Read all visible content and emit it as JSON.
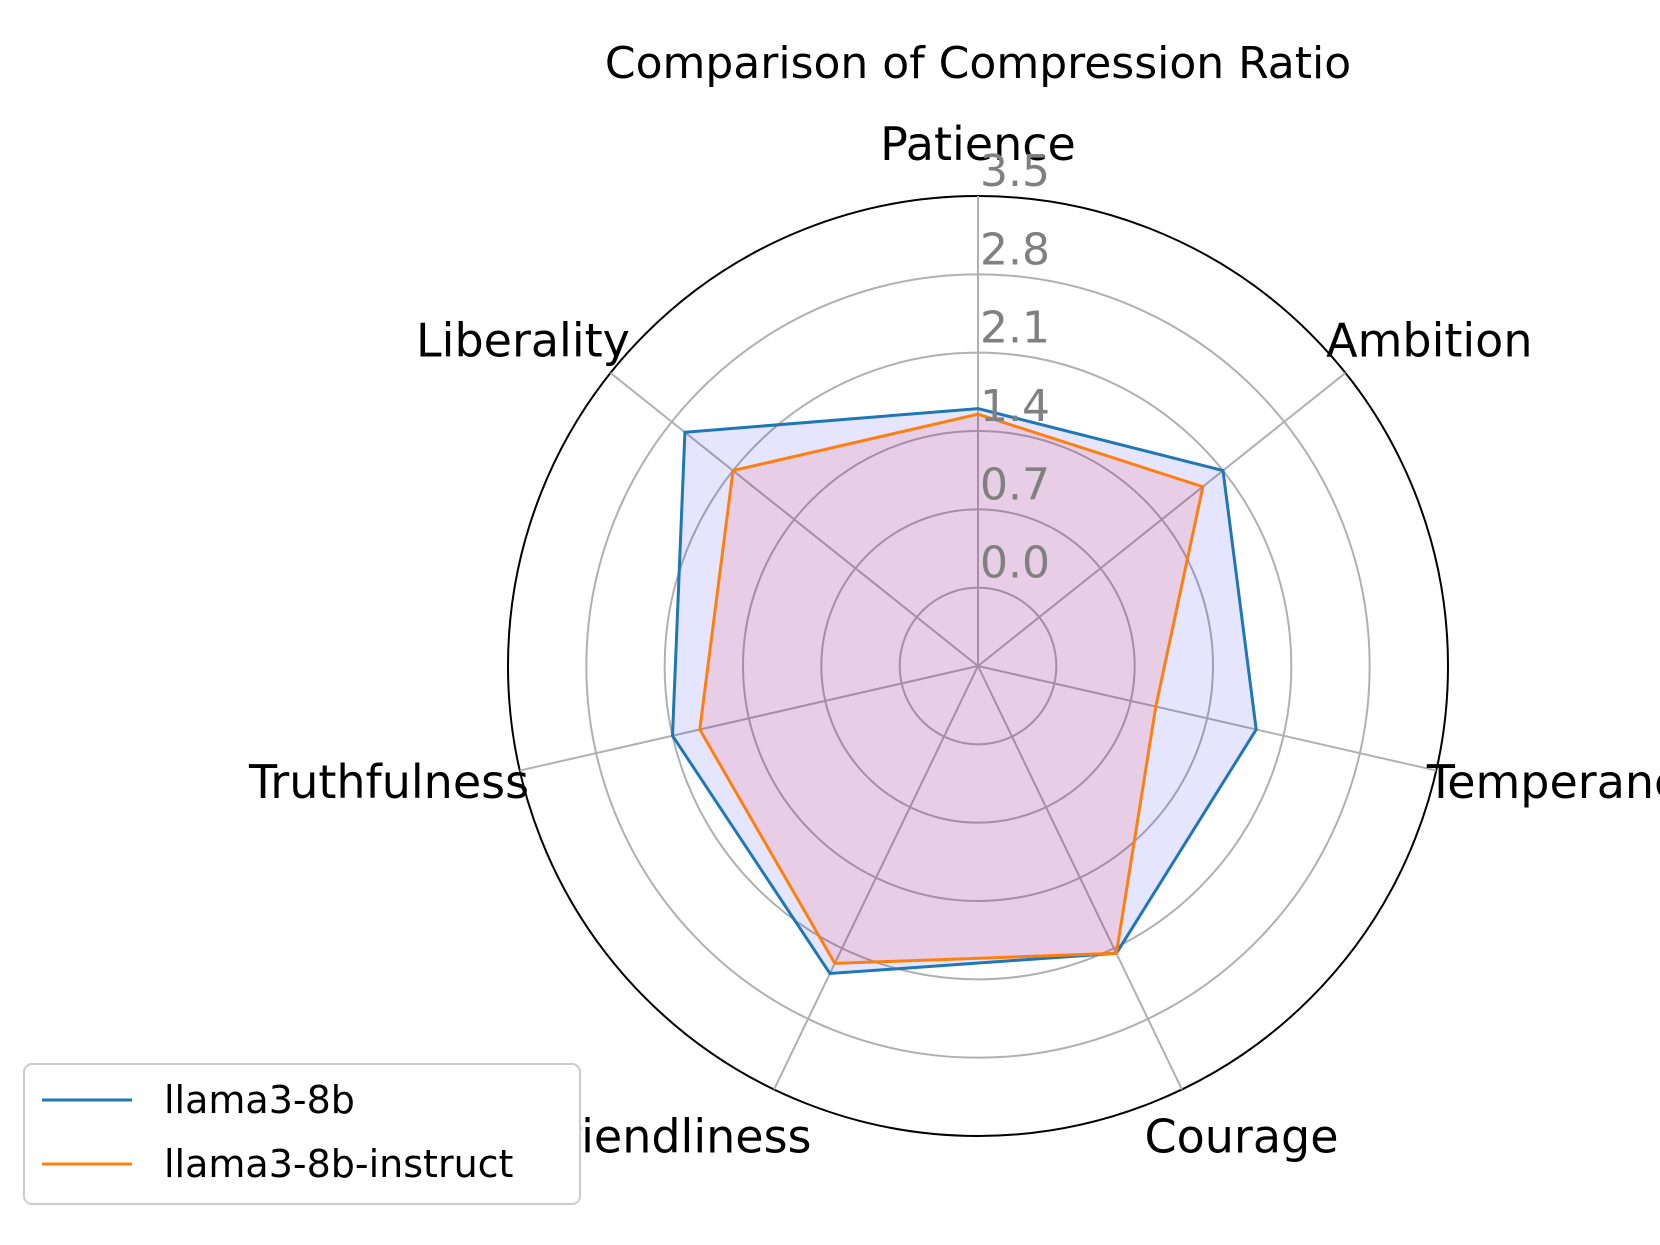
{
  "chart_data": {
    "type": "radar",
    "title": "Comparison of Compression Ratio",
    "categories": [
      "Patience",
      "Ambition",
      "Temperance",
      "Courage",
      "Friendliness",
      "Truthfulness",
      "Liberality"
    ],
    "r_ticks": [
      "0.0",
      "0.7",
      "1.4",
      "2.1",
      "2.8",
      "3.5"
    ],
    "r_tick_values": [
      0.0,
      0.7,
      1.4,
      2.1,
      2.8,
      3.5
    ],
    "rlim": [
      -0.7,
      3.5
    ],
    "grid": true,
    "legend_position": "lower-left",
    "series": [
      {
        "name": "llama3-8b",
        "color": "#1f77b4",
        "fill": "#0000ff",
        "values": [
          1.6,
          2.1,
          1.85,
          2.15,
          2.35,
          2.1,
          2.65
        ]
      },
      {
        "name": "llama3-8b-instruct",
        "color": "#ff7f0e",
        "fill": "#ff0000",
        "values": [
          1.55,
          1.87,
          0.93,
          2.15,
          2.25,
          1.85,
          2.1
        ]
      }
    ]
  }
}
